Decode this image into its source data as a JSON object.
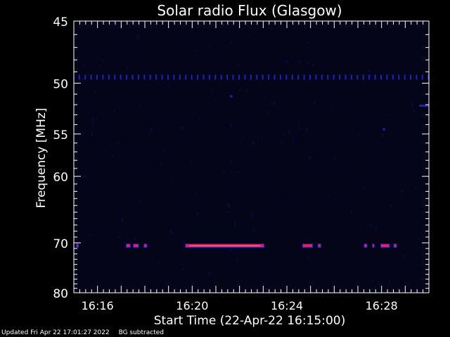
{
  "chart_data": {
    "type": "heatmap",
    "title": "Solar radio Flux (Glasgow)",
    "xlabel": "Start Time (22-Apr-22 16:15:00)",
    "ylabel": "Frequency [MHz]",
    "x_unit": "minutes past 16:15:00",
    "xlim": [
      0,
      15
    ],
    "x_ticks": [
      {
        "value": 1,
        "label": "16:16"
      },
      {
        "value": 5,
        "label": "16:20"
      },
      {
        "value": 9,
        "label": "16:24"
      },
      {
        "value": 13,
        "label": "16:28"
      }
    ],
    "ylim": [
      45,
      80
    ],
    "y_ticks": [
      {
        "value": 45,
        "label": "45"
      },
      {
        "value": 50,
        "label": "50"
      },
      {
        "value": 55,
        "label": "55"
      },
      {
        "value": 60,
        "label": "60"
      },
      {
        "value": 70,
        "label": "70"
      },
      {
        "value": 80,
        "label": "80"
      }
    ],
    "y_scale": "reciprocal",
    "background_color": "#000000",
    "plot_background_color": "#05051a",
    "colormap": [
      "#0a0a3c",
      "#2020c8",
      "#c020a0",
      "#ff2020",
      "#ff8040"
    ],
    "features": [
      {
        "name": "emission band 70.5 MHz",
        "freq_mhz": 70.5,
        "intensity": 1.0,
        "segments": [
          [
            0.1,
            0.2
          ],
          [
            2.2,
            2.4
          ],
          [
            2.5,
            2.75
          ],
          [
            2.95,
            3.1
          ],
          [
            4.7,
            8.05
          ],
          [
            9.65,
            10.1
          ],
          [
            10.3,
            10.45
          ],
          [
            12.25,
            12.4
          ],
          [
            12.6,
            12.7
          ],
          [
            12.95,
            13.35
          ],
          [
            13.5,
            13.65
          ]
        ]
      },
      {
        "name": "dotted interference line 49.5 MHz",
        "freq_mhz": 49.5,
        "intensity": 0.35,
        "dotted_from": 0.2,
        "dotted_to": 15,
        "dot_spacing": 0.25
      },
      {
        "name": "blip 51.2 MHz",
        "freq_mhz": 51.2,
        "intensity": 0.4,
        "segments": [
          [
            6.6,
            6.7
          ]
        ]
      },
      {
        "name": "blip 54.5 MHz",
        "freq_mhz": 54.5,
        "intensity": 0.4,
        "segments": [
          [
            13.05,
            13.15
          ]
        ]
      },
      {
        "name": "band 52 MHz",
        "freq_mhz": 52.1,
        "intensity": 0.4,
        "segments": [
          [
            14.6,
            15.0
          ]
        ]
      }
    ]
  },
  "footer": {
    "updated": "Updated Fri Apr 22 17:01:27 2022",
    "note": "BG subtracted"
  }
}
